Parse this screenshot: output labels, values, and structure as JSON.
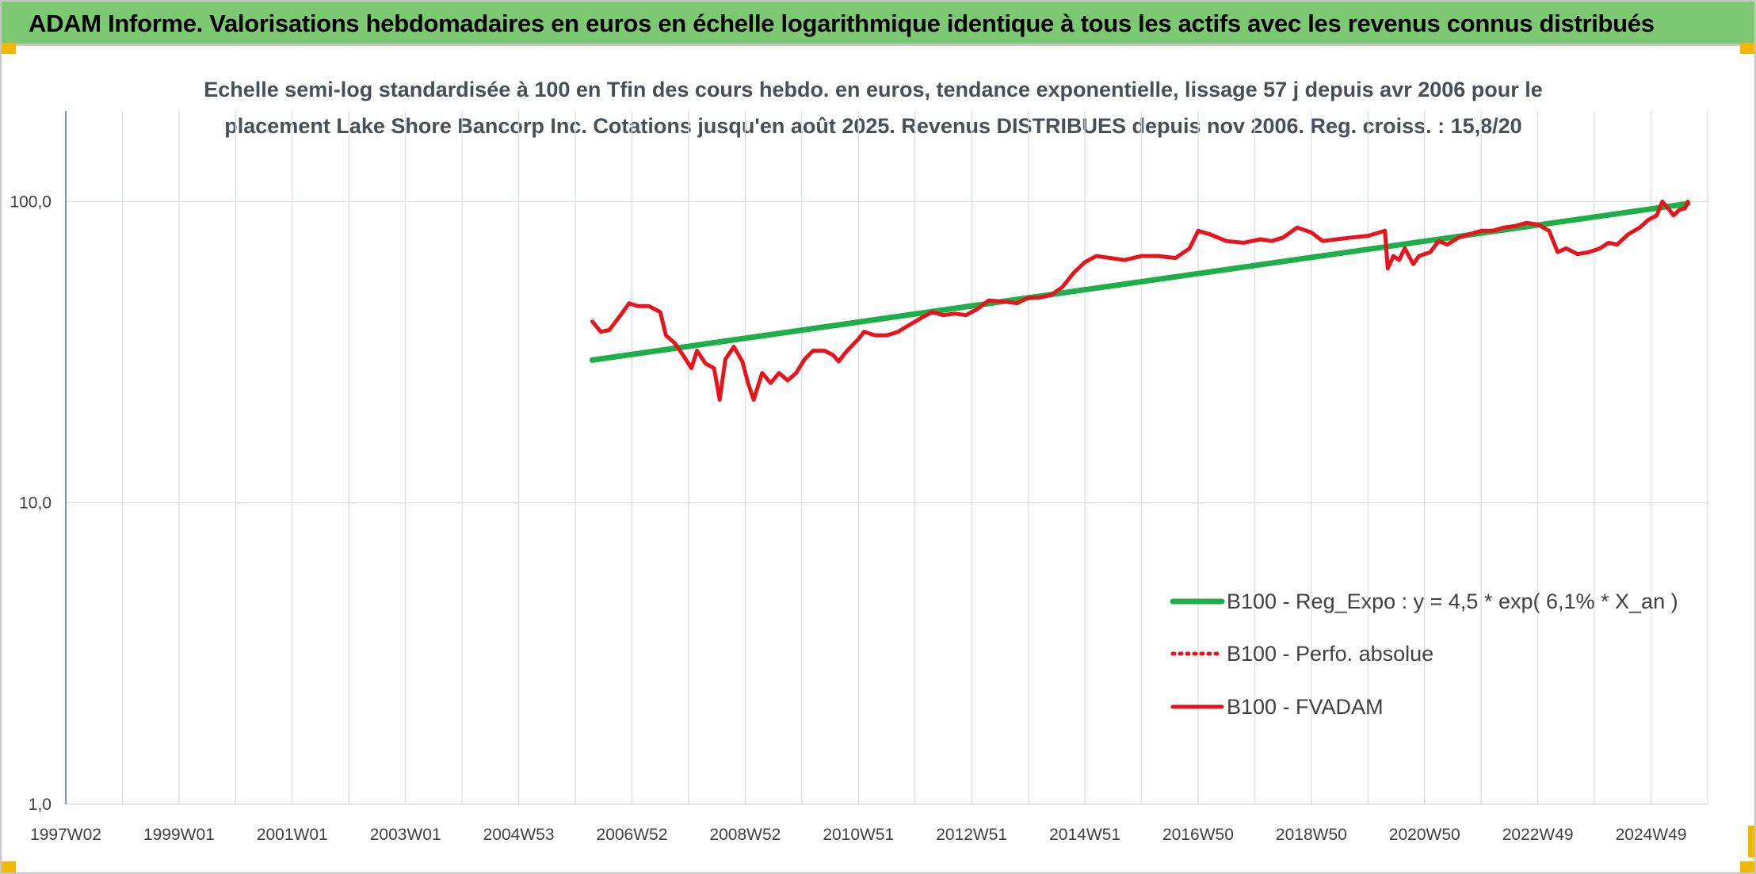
{
  "banner": {
    "title": "ADAM Informe. Valorisations hebdomadaires en euros en échelle logarithmique identique à tous les actifs avec les revenus connus distribués"
  },
  "chart_data": {
    "type": "line",
    "title_line1": "Echelle semi-log standardisée à 100 en Tfin des cours hebdo. en euros, tendance exponentielle, lissage 57 j depuis avr 2006 pour le",
    "title_line2": "placement Lake Shore Bancorp Inc. Cotations jusqu'en août 2025. Revenus DISTRIBUES depuis nov 2006. Reg. croiss. : 15,8/20",
    "y_scale": "log",
    "ylim": [
      1,
      200
    ],
    "y_ticks": [
      {
        "value": 1,
        "label": "1,0"
      },
      {
        "value": 10,
        "label": "10,0"
      },
      {
        "value": 100,
        "label": "100,0"
      }
    ],
    "xlim": [
      1997.0,
      2026.0
    ],
    "x_ticks": [
      {
        "value": 1997.0,
        "label": "1997W02"
      },
      {
        "value": 1999.0,
        "label": "1999W01"
      },
      {
        "value": 2001.0,
        "label": "2001W01"
      },
      {
        "value": 2003.0,
        "label": "2003W01"
      },
      {
        "value": 2005.0,
        "label": "2004W53"
      },
      {
        "value": 2007.0,
        "label": "2006W52"
      },
      {
        "value": 2009.0,
        "label": "2008W52"
      },
      {
        "value": 2011.0,
        "label": "2010W51"
      },
      {
        "value": 2013.0,
        "label": "2012W51"
      },
      {
        "value": 2015.0,
        "label": "2014W51"
      },
      {
        "value": 2017.0,
        "label": "2016W50"
      },
      {
        "value": 2019.0,
        "label": "2018W50"
      },
      {
        "value": 2021.0,
        "label": "2020W50"
      },
      {
        "value": 2023.0,
        "label": "2022W49"
      },
      {
        "value": 2025.0,
        "label": "2024W49"
      }
    ],
    "grid": "vertical-and-horizontal",
    "legend_position": "bottom-right",
    "series": [
      {
        "name": "B100 - Reg_Expo : y = 4,5 * exp( 6,1% *  X_an )",
        "style": "solid-thick",
        "color": "#1fae4a",
        "points": [
          [
            2006.3,
            29.8
          ],
          [
            2025.65,
            98.5
          ]
        ]
      },
      {
        "name": "B100 - Perfo. absolue",
        "style": "dotted",
        "color": "#e8141b",
        "points": []
      },
      {
        "name": "B100 - FVADAM",
        "style": "solid",
        "color": "#e8141b",
        "points": [
          [
            2006.3,
            40
          ],
          [
            2006.45,
            37
          ],
          [
            2006.6,
            37.5
          ],
          [
            2006.8,
            42
          ],
          [
            2006.95,
            46
          ],
          [
            2007.1,
            45
          ],
          [
            2007.3,
            45
          ],
          [
            2007.5,
            43
          ],
          [
            2007.6,
            36
          ],
          [
            2007.75,
            34
          ],
          [
            2007.9,
            31
          ],
          [
            2008.05,
            28
          ],
          [
            2008.15,
            32
          ],
          [
            2008.3,
            29
          ],
          [
            2008.45,
            28
          ],
          [
            2008.55,
            22
          ],
          [
            2008.65,
            30
          ],
          [
            2008.8,
            33
          ],
          [
            2008.95,
            29.5
          ],
          [
            2009.05,
            25
          ],
          [
            2009.15,
            22
          ],
          [
            2009.3,
            27
          ],
          [
            2009.45,
            25
          ],
          [
            2009.6,
            27
          ],
          [
            2009.75,
            25.5
          ],
          [
            2009.9,
            27
          ],
          [
            2010.05,
            30
          ],
          [
            2010.2,
            32
          ],
          [
            2010.4,
            32
          ],
          [
            2010.55,
            31
          ],
          [
            2010.65,
            29.5
          ],
          [
            2010.8,
            32
          ],
          [
            2011.0,
            35
          ],
          [
            2011.1,
            37
          ],
          [
            2011.3,
            36
          ],
          [
            2011.5,
            36
          ],
          [
            2011.7,
            37
          ],
          [
            2011.9,
            39
          ],
          [
            2012.1,
            41
          ],
          [
            2012.3,
            43
          ],
          [
            2012.5,
            42
          ],
          [
            2012.7,
            42.5
          ],
          [
            2012.9,
            42
          ],
          [
            2013.1,
            44
          ],
          [
            2013.3,
            47
          ],
          [
            2013.6,
            46.5
          ],
          [
            2013.8,
            46
          ],
          [
            2014.0,
            48
          ],
          [
            2014.2,
            48
          ],
          [
            2014.4,
            49
          ],
          [
            2014.6,
            52
          ],
          [
            2014.8,
            58
          ],
          [
            2015.0,
            63
          ],
          [
            2015.2,
            66
          ],
          [
            2015.45,
            65
          ],
          [
            2015.7,
            64
          ],
          [
            2016.0,
            66
          ],
          [
            2016.3,
            66
          ],
          [
            2016.6,
            65
          ],
          [
            2016.85,
            70
          ],
          [
            2017.0,
            80
          ],
          [
            2017.2,
            78
          ],
          [
            2017.5,
            74
          ],
          [
            2017.8,
            73
          ],
          [
            2018.1,
            75
          ],
          [
            2018.3,
            74
          ],
          [
            2018.5,
            76
          ],
          [
            2018.75,
            82
          ],
          [
            2019.0,
            79
          ],
          [
            2019.2,
            74
          ],
          [
            2019.45,
            75
          ],
          [
            2019.7,
            76
          ],
          [
            2020.0,
            77
          ],
          [
            2020.2,
            79
          ],
          [
            2020.3,
            80
          ],
          [
            2020.35,
            60
          ],
          [
            2020.45,
            66
          ],
          [
            2020.55,
            64
          ],
          [
            2020.65,
            70
          ],
          [
            2020.8,
            62
          ],
          [
            2020.9,
            66
          ],
          [
            2021.1,
            68
          ],
          [
            2021.25,
            74
          ],
          [
            2021.4,
            72
          ],
          [
            2021.6,
            76
          ],
          [
            2021.8,
            78
          ],
          [
            2022.0,
            80
          ],
          [
            2022.2,
            80
          ],
          [
            2022.4,
            82
          ],
          [
            2022.6,
            83
          ],
          [
            2022.8,
            85
          ],
          [
            2023.0,
            84
          ],
          [
            2023.2,
            80
          ],
          [
            2023.35,
            68
          ],
          [
            2023.5,
            70
          ],
          [
            2023.7,
            67
          ],
          [
            2023.9,
            68
          ],
          [
            2024.1,
            70
          ],
          [
            2024.25,
            73
          ],
          [
            2024.4,
            72
          ],
          [
            2024.6,
            78
          ],
          [
            2024.8,
            82
          ],
          [
            2024.95,
            87
          ],
          [
            2025.1,
            90
          ],
          [
            2025.2,
            100
          ],
          [
            2025.3,
            95
          ],
          [
            2025.4,
            90
          ],
          [
            2025.5,
            94
          ],
          [
            2025.6,
            95
          ],
          [
            2025.65,
            100
          ]
        ]
      }
    ]
  }
}
